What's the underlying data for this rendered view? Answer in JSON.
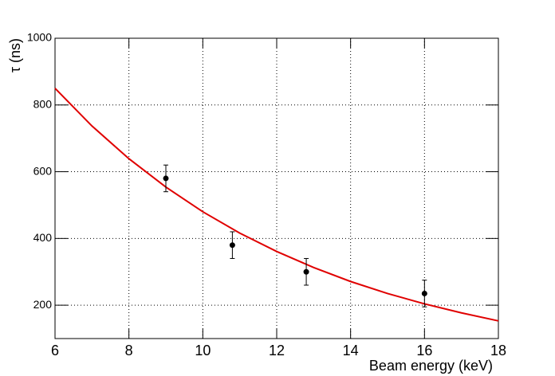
{
  "chart_data": {
    "type": "scatter",
    "x_label": "Beam energy (keV)",
    "y_label": "τ (ns)",
    "xlim": [
      6,
      18
    ],
    "xticks": [
      6,
      8,
      10,
      12,
      14,
      16,
      18
    ],
    "ylim": [
      100,
      1000
    ],
    "yticks": [
      200,
      400,
      600,
      800,
      1000
    ],
    "grid": true,
    "series": [
      {
        "type": "line",
        "color": "#e00000",
        "x": [
          6,
          7,
          8,
          9,
          10,
          11,
          12,
          13,
          14,
          15,
          16,
          17,
          18
        ],
        "values": [
          850,
          737,
          639,
          554,
          480,
          416,
          361,
          313,
          271,
          235,
          204,
          177,
          153
        ]
      },
      {
        "type": "scatter",
        "color": "#000000",
        "x": [
          9,
          10.8,
          12.8,
          16
        ],
        "values": [
          580,
          380,
          300,
          235
        ],
        "errors": [
          40,
          40,
          40,
          40
        ]
      }
    ]
  }
}
